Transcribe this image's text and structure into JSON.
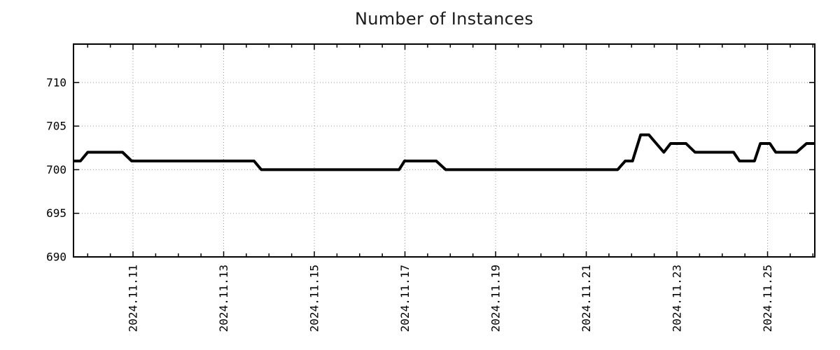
{
  "page": {
    "background": "#ffffff"
  },
  "chart_data": {
    "type": "line",
    "title": "Number of Instances",
    "xlabel": "",
    "ylabel": "",
    "legend": "none",
    "grid": "dotted",
    "x_unit": "days relative to 2024-11-11 00:00 (x axis shows dates, major ticks every 2 days, minor ticks every 0.5 day)",
    "xlim": [
      -1.313,
      15.042
    ],
    "ylim": [
      690,
      714.4
    ],
    "y_ticks": [
      690,
      695,
      700,
      705,
      710
    ],
    "x_major_ticks": [
      0,
      2,
      4,
      6,
      8,
      10,
      12,
      14
    ],
    "x_tick_labels": [
      "2024.11.11",
      "2024.11.13",
      "2024.11.15",
      "2024.11.17",
      "2024.11.19",
      "2024.11.21",
      "2024.11.23",
      "2024.11.25"
    ],
    "x_minor_tick_interval": 0.5,
    "x_minor_tick_start": -1.0,
    "x_minor_tick_end": 15.0,
    "series": [
      {
        "name": "Number of Instances",
        "color": "#000000",
        "line_width": 4,
        "points": [
          [
            -1.313,
            701
          ],
          [
            -1.16,
            701
          ],
          [
            -1.0,
            702
          ],
          [
            -0.23,
            702
          ],
          [
            -0.03,
            701
          ],
          [
            2.67,
            701
          ],
          [
            2.83,
            700
          ],
          [
            5.87,
            700
          ],
          [
            5.99,
            701
          ],
          [
            6.69,
            701
          ],
          [
            6.9,
            700
          ],
          [
            10.69,
            700
          ],
          [
            10.86,
            701
          ],
          [
            11.02,
            701
          ],
          [
            11.2,
            704
          ],
          [
            11.38,
            704
          ],
          [
            11.71,
            702
          ],
          [
            11.86,
            703
          ],
          [
            12.2,
            703
          ],
          [
            12.4,
            702
          ],
          [
            13.25,
            702
          ],
          [
            13.38,
            701
          ],
          [
            13.71,
            701
          ],
          [
            13.84,
            703
          ],
          [
            14.05,
            703
          ],
          [
            14.18,
            702
          ],
          [
            14.64,
            702
          ],
          [
            14.86,
            703
          ],
          [
            15.042,
            703
          ]
        ]
      }
    ],
    "colors": {
      "line": "#000000",
      "grid": "#999999",
      "axis": "#000000",
      "text": "#000000",
      "title_text": "#1a1a1a",
      "background": "#ffffff"
    }
  }
}
